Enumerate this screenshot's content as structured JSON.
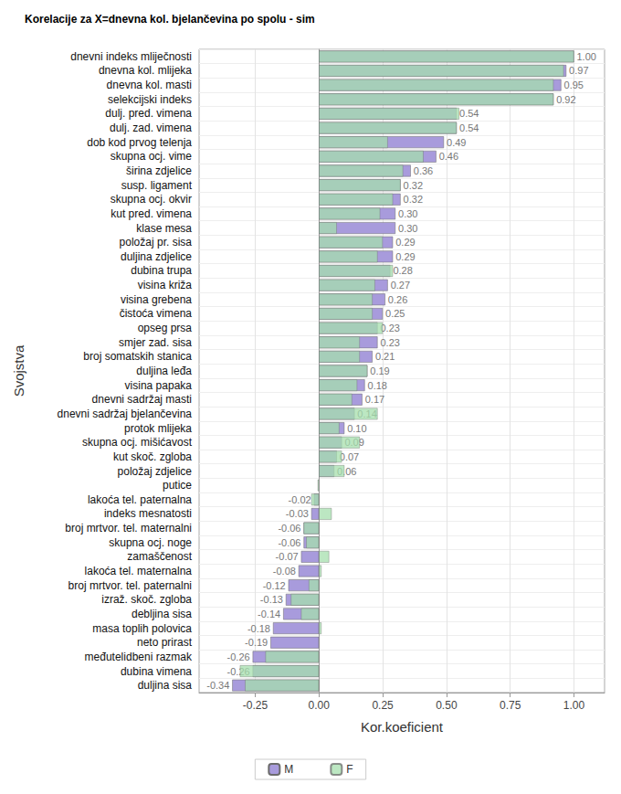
{
  "chart_data": {
    "type": "bar",
    "title": "Korelacije za X=dnevna kol. bjelančevina po spolu - sim",
    "x_label": "Kor.koeficient",
    "y_label": "Svojstva",
    "orientation": "horizontal",
    "grid": true,
    "legend": "bottom",
    "categories": [
      "dnevni indeks mliječnosti",
      "dnevna kol. mlijeka",
      "dnevna kol. masti",
      "selekcijski indeks",
      "dulj. pred. vimena",
      "dulj. zad. vimena",
      "dob kod prvog telenja",
      "skupna ocj. vime",
      "širina zdjelice",
      "susp. ligament",
      "skupna ocj. okvir",
      "kut pred. vimena",
      "klase mesa",
      "položaj pr. sisa",
      "duljina zdjelice",
      "dubina trupa",
      "visina križa",
      "visina grebena",
      "čistoća vimena",
      "opseg prsa",
      "smjer zad. sisa",
      "broj somatskih stanica",
      "duljina leđa",
      "visina papaka",
      "dnevni sadržaj masti",
      "dnevni sadržaj bjelančevina",
      "protok mlijeka",
      "skupna ocj. mišićavost",
      "kut skoč. zgloba",
      "položaj zdjelice",
      "putice",
      "lakoća tel. paternalna",
      "indeks mesnatosti",
      "broj mrtvor. tel. maternalni",
      "skupna ocj. noge",
      "zamaščenost",
      "lakoća tel. maternalna",
      "broj mrtvor. tel. paternalni",
      "izraž. skoč. zgloba",
      "debljina sisa",
      "masa toplih polovica",
      "neto prirast",
      "međutelidbeni razmak",
      "dubina vimena",
      "duljina sisa"
    ],
    "series": [
      {
        "name": "M",
        "color": "#a89bdc",
        "data_labels": true,
        "values": [
          1.0,
          0.97,
          0.95,
          0.92,
          0.54,
          0.54,
          0.49,
          0.46,
          0.36,
          0.32,
          0.32,
          0.3,
          0.3,
          0.29,
          0.29,
          0.28,
          0.27,
          0.26,
          0.25,
          0.23,
          0.23,
          0.21,
          0.19,
          0.18,
          0.17,
          0.14,
          0.1,
          0.09,
          0.07,
          0.06,
          null,
          -0.02,
          -0.03,
          -0.06,
          -0.06,
          -0.07,
          -0.08,
          -0.12,
          -0.13,
          -0.14,
          -0.18,
          -0.19,
          -0.26,
          -0.26,
          -0.34
        ],
        "value_labels": [
          "1.00",
          "0.97",
          "0.95",
          "0.92",
          "0.54",
          "0.54",
          "0.49",
          "0.46",
          "0.36",
          "0.32",
          "0.32",
          "0.30",
          "0.30",
          "0.29",
          "0.29",
          "0.28",
          "0.27",
          "0.26",
          "0.25",
          "0.23",
          "0.23",
          "0.21",
          "0.19",
          "0.18",
          "0.17",
          "0.14",
          "0.10",
          "0.09",
          "0.07",
          "0.06",
          null,
          "-0.02",
          "-0.03",
          "-0.06",
          "-0.06",
          "-0.07",
          "-0.08",
          "-0.12",
          "-0.13",
          "-0.14",
          "-0.18",
          "-0.19",
          "-0.26",
          "-0.26",
          "-0.34"
        ]
      },
      {
        "name": "F",
        "color": "#a6dfae",
        "values": [
          1.0,
          0.96,
          0.92,
          0.92,
          0.55,
          0.54,
          0.27,
          0.41,
          0.33,
          0.32,
          0.29,
          0.24,
          0.07,
          0.25,
          0.23,
          0.29,
          0.22,
          0.21,
          0.21,
          0.25,
          0.16,
          0.16,
          0.19,
          0.15,
          0.13,
          0.23,
          0.08,
          0.16,
          0.09,
          0.1,
          -0.005,
          -0.03,
          0.05,
          -0.06,
          -0.05,
          0.04,
          0.01,
          -0.04,
          -0.11,
          -0.07,
          0.01,
          null,
          -0.21,
          -0.31,
          -0.29
        ]
      }
    ],
    "xlim": [
      -0.47,
      1.12
    ],
    "xticks": [
      -0.25,
      {
        "value": 0,
        "label": "0.00"
      },
      0.25,
      {
        "value": 0.5,
        "label": "0.50"
      },
      0.75,
      {
        "value": 1,
        "label": "1.00"
      }
    ]
  }
}
